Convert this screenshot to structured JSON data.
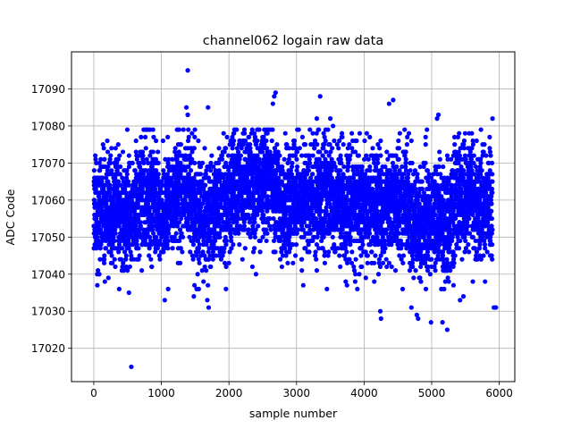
{
  "chart_data": {
    "type": "scatter",
    "title": "channel062 logain raw data",
    "xlabel": "sample number",
    "ylabel": "ADC Code",
    "xlim": [
      -330,
      6230
    ],
    "ylim": [
      17011,
      17100
    ],
    "xticks": [
      0,
      1000,
      2000,
      3000,
      4000,
      5000,
      6000
    ],
    "yticks": [
      17020,
      17030,
      17040,
      17050,
      17060,
      17070,
      17080,
      17090
    ],
    "grid": true,
    "marker_color": "#0000ff",
    "n_points": 5900,
    "mean_profile": [
      [
        0,
        17058
      ],
      [
        300,
        17057
      ],
      [
        550,
        17056
      ],
      [
        800,
        17062
      ],
      [
        1000,
        17057
      ],
      [
        1200,
        17061
      ],
      [
        1400,
        17064
      ],
      [
        1500,
        17055
      ],
      [
        1700,
        17057
      ],
      [
        2000,
        17061
      ],
      [
        2300,
        17064
      ],
      [
        2600,
        17066
      ],
      [
        2800,
        17058
      ],
      [
        3100,
        17061
      ],
      [
        3400,
        17062
      ],
      [
        3700,
        17058
      ],
      [
        4000,
        17058
      ],
      [
        4300,
        17058
      ],
      [
        4600,
        17061
      ],
      [
        4800,
        17052
      ],
      [
        5000,
        17056
      ],
      [
        5200,
        17052
      ],
      [
        5400,
        17062
      ],
      [
        5700,
        17059
      ],
      [
        5900,
        17059
      ]
    ],
    "outliers": [
      [
        555,
        17015
      ],
      [
        1390,
        17095
      ],
      [
        1370,
        17085
      ],
      [
        1390,
        17083
      ],
      [
        1690,
        17085
      ],
      [
        1700,
        17031
      ],
      [
        1680,
        17033
      ],
      [
        1050,
        17033
      ],
      [
        1100,
        17036
      ],
      [
        1480,
        17034
      ],
      [
        2670,
        17088
      ],
      [
        2690,
        17089
      ],
      [
        2650,
        17086
      ],
      [
        3350,
        17088
      ],
      [
        3300,
        17082
      ],
      [
        3500,
        17082
      ],
      [
        3540,
        17080
      ],
      [
        4430,
        17087
      ],
      [
        4370,
        17086
      ],
      [
        4240,
        17030
      ],
      [
        4250,
        17028
      ],
      [
        4570,
        17036
      ],
      [
        4700,
        17031
      ],
      [
        4780,
        17029
      ],
      [
        4800,
        17028
      ],
      [
        4990,
        17027
      ],
      [
        5160,
        17027
      ],
      [
        5230,
        17025
      ],
      [
        5320,
        17042
      ],
      [
        5420,
        17033
      ],
      [
        5470,
        17034
      ],
      [
        5790,
        17038
      ],
      [
        5900,
        17082
      ],
      [
        5920,
        17031
      ],
      [
        5950,
        17031
      ],
      [
        5100,
        17083
      ],
      [
        5080,
        17082
      ],
      [
        4600,
        17079
      ],
      [
        4930,
        17079
      ],
      [
        4910,
        17077
      ],
      [
        5610,
        17076
      ],
      [
        5780,
        17075
      ],
      [
        2200,
        17044
      ],
      [
        2400,
        17040
      ],
      [
        3100,
        17037
      ],
      [
        3300,
        17041
      ],
      [
        3450,
        17036
      ],
      [
        3900,
        17036
      ],
      [
        4150,
        17038
      ],
      [
        520,
        17035
      ]
    ]
  }
}
